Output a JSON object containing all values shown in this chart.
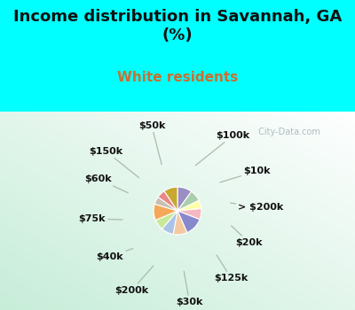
{
  "title": "Income distribution in Savannah, GA\n(%)",
  "subtitle": "White residents",
  "bg_cyan": "#00FFFF",
  "bg_chart_color1": "#c8ecd8",
  "bg_chart_color2": "#e8f8f0",
  "labels": [
    "$100k",
    "$10k",
    "> $200k",
    "$20k",
    "$125k",
    "$30k",
    "$200k",
    "$40k",
    "$75k",
    "$60k",
    "$150k",
    "$50k"
  ],
  "values": [
    9.5,
    7.5,
    5.5,
    7.0,
    12.0,
    9.0,
    8.0,
    7.0,
    10.5,
    5.0,
    5.5,
    9.0
  ],
  "colors": [
    "#9b8ec4",
    "#aacfaa",
    "#ffffaa",
    "#f4b8c0",
    "#8888cc",
    "#f5c9a0",
    "#aac4e8",
    "#c8e89a",
    "#f5a857",
    "#c8bfb0",
    "#e88888",
    "#c8a830"
  ],
  "wedge_linewidth": 0.8,
  "wedge_edgecolor": "#ffffff",
  "label_fontsize": 8,
  "title_fontsize": 13,
  "subtitle_fontsize": 11,
  "subtitle_color": "#c87030",
  "title_color": "#111111",
  "watermark": " City-Data.com"
}
